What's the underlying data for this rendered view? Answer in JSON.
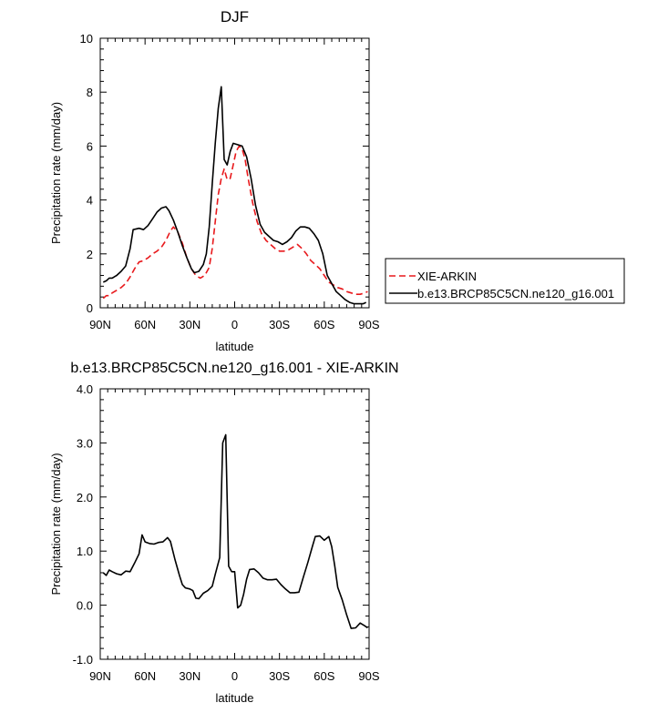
{
  "chart_data": [
    {
      "type": "line",
      "title": "DJF",
      "xlabel": "latitude",
      "ylabel": "Precipitation rate (mm/day)",
      "xlim": [
        90,
        -90
      ],
      "ylim": [
        0,
        10
      ],
      "xticks": [
        90,
        60,
        30,
        0,
        -30,
        -60,
        -90
      ],
      "xtick_labels": [
        "90N",
        "60N",
        "30N",
        "0",
        "30S",
        "60S",
        "90S"
      ],
      "yticks": [
        0,
        2,
        4,
        6,
        8,
        10
      ],
      "ytick_labels": [
        "0",
        "2",
        "4",
        "6",
        "8",
        "10"
      ],
      "legend": [
        "XIE-ARKIN",
        "b.e13.BRCP85C5CN.ne120_g16.001"
      ],
      "series": [
        {
          "name": "XIE-ARKIN",
          "color": "#e8191c",
          "dash": true,
          "points": [
            [
              88,
              0.35
            ],
            [
              86,
              0.45
            ],
            [
              84,
              0.45
            ],
            [
              82,
              0.55
            ],
            [
              79,
              0.65
            ],
            [
              76,
              0.75
            ],
            [
              73,
              0.9
            ],
            [
              70,
              1.15
            ],
            [
              67,
              1.45
            ],
            [
              64,
              1.7
            ],
            [
              61,
              1.75
            ],
            [
              58,
              1.85
            ],
            [
              55,
              2.0
            ],
            [
              52,
              2.1
            ],
            [
              49,
              2.25
            ],
            [
              46,
              2.5
            ],
            [
              43,
              2.85
            ],
            [
              41,
              3.0
            ],
            [
              38,
              2.8
            ],
            [
              35,
              2.4
            ],
            [
              32,
              1.85
            ],
            [
              29,
              1.45
            ],
            [
              26,
              1.2
            ],
            [
              23,
              1.1
            ],
            [
              20,
              1.2
            ],
            [
              17,
              1.5
            ],
            [
              15,
              2.2
            ],
            [
              13,
              3.2
            ],
            [
              11,
              4.2
            ],
            [
              9,
              4.8
            ],
            [
              7,
              5.15
            ],
            [
              5,
              4.75
            ],
            [
              3,
              4.8
            ],
            [
              1,
              5.3
            ],
            [
              -1,
              5.8
            ],
            [
              -3,
              6.0
            ],
            [
              -5,
              5.9
            ],
            [
              -7,
              5.5
            ],
            [
              -9,
              4.8
            ],
            [
              -12,
              3.9
            ],
            [
              -15,
              3.2
            ],
            [
              -18,
              2.75
            ],
            [
              -21,
              2.5
            ],
            [
              -24,
              2.35
            ],
            [
              -27,
              2.2
            ],
            [
              -30,
              2.1
            ],
            [
              -33,
              2.1
            ],
            [
              -36,
              2.15
            ],
            [
              -39,
              2.25
            ],
            [
              -42,
              2.35
            ],
            [
              -45,
              2.2
            ],
            [
              -48,
              2.0
            ],
            [
              -51,
              1.75
            ],
            [
              -54,
              1.6
            ],
            [
              -57,
              1.45
            ],
            [
              -60,
              1.2
            ],
            [
              -63,
              0.95
            ],
            [
              -66,
              0.85
            ],
            [
              -69,
              0.75
            ],
            [
              -72,
              0.7
            ],
            [
              -75,
              0.6
            ],
            [
              -78,
              0.55
            ],
            [
              -81,
              0.5
            ],
            [
              -84,
              0.5
            ],
            [
              -87,
              0.55
            ],
            [
              -89,
              0.6
            ]
          ]
        },
        {
          "name": "b.e13.BRCP85C5CN.ne120_g16.001",
          "color": "#000000",
          "dash": false,
          "points": [
            [
              88,
              0.95
            ],
            [
              86,
              1.0
            ],
            [
              84,
              1.1
            ],
            [
              82,
              1.1
            ],
            [
              79,
              1.2
            ],
            [
              76,
              1.35
            ],
            [
              73,
              1.55
            ],
            [
              70,
              2.2
            ],
            [
              68,
              2.9
            ],
            [
              64,
              2.95
            ],
            [
              61,
              2.9
            ],
            [
              58,
              3.05
            ],
            [
              55,
              3.3
            ],
            [
              52,
              3.55
            ],
            [
              49,
              3.7
            ],
            [
              46,
              3.75
            ],
            [
              44,
              3.6
            ],
            [
              41,
              3.25
            ],
            [
              38,
              2.8
            ],
            [
              35,
              2.3
            ],
            [
              32,
              1.85
            ],
            [
              29,
              1.45
            ],
            [
              27,
              1.3
            ],
            [
              24,
              1.35
            ],
            [
              21,
              1.6
            ],
            [
              19,
              2.0
            ],
            [
              17,
              3.0
            ],
            [
              15,
              4.6
            ],
            [
              13,
              6.1
            ],
            [
              11,
              7.4
            ],
            [
              9,
              8.2
            ],
            [
              7,
              5.5
            ],
            [
              5,
              5.3
            ],
            [
              3,
              5.8
            ],
            [
              1,
              6.1
            ],
            [
              -2,
              6.05
            ],
            [
              -5,
              6.0
            ],
            [
              -8,
              5.6
            ],
            [
              -11,
              4.8
            ],
            [
              -14,
              3.8
            ],
            [
              -17,
              3.1
            ],
            [
              -20,
              2.8
            ],
            [
              -23,
              2.65
            ],
            [
              -26,
              2.5
            ],
            [
              -29,
              2.45
            ],
            [
              -32,
              2.35
            ],
            [
              -35,
              2.45
            ],
            [
              -38,
              2.6
            ],
            [
              -41,
              2.85
            ],
            [
              -44,
              3.0
            ],
            [
              -47,
              3.0
            ],
            [
              -50,
              2.95
            ],
            [
              -53,
              2.75
            ],
            [
              -56,
              2.5
            ],
            [
              -59,
              2.0
            ],
            [
              -62,
              1.2
            ],
            [
              -65,
              0.9
            ],
            [
              -68,
              0.6
            ],
            [
              -71,
              0.45
            ],
            [
              -74,
              0.3
            ],
            [
              -77,
              0.2
            ],
            [
              -80,
              0.15
            ],
            [
              -83,
              0.15
            ],
            [
              -86,
              0.15
            ],
            [
              -88,
              0.2
            ]
          ]
        }
      ]
    },
    {
      "type": "line",
      "title": "b.e13.BRCP85C5CN.ne120_g16.001 - XIE-ARKIN",
      "xlabel": "latitude",
      "ylabel": "Precipitation rate (mm/day)",
      "xlim": [
        90,
        -90
      ],
      "ylim": [
        -1,
        4
      ],
      "xticks": [
        90,
        60,
        30,
        0,
        -30,
        -60,
        -90
      ],
      "xtick_labels": [
        "90N",
        "60N",
        "30N",
        "0",
        "30S",
        "60S",
        "90S"
      ],
      "yticks": [
        -1,
        0,
        1,
        2,
        3,
        4
      ],
      "ytick_labels": [
        "-1.0",
        "0.0",
        "1.0",
        "2.0",
        "3.0",
        "4.0"
      ],
      "series": [
        {
          "name": "b.e13.BRCP85C5CN.ne120_g16.001 - XIE-ARKIN",
          "color": "#000000",
          "dash": false,
          "points": [
            [
              88,
              0.6
            ],
            [
              86,
              0.55
            ],
            [
              84,
              0.65
            ],
            [
              82,
              0.62
            ],
            [
              79,
              0.58
            ],
            [
              76,
              0.56
            ],
            [
              73,
              0.63
            ],
            [
              70,
              0.62
            ],
            [
              67,
              0.78
            ],
            [
              64,
              0.95
            ],
            [
              62,
              1.3
            ],
            [
              60,
              1.17
            ],
            [
              57,
              1.14
            ],
            [
              54,
              1.13
            ],
            [
              51,
              1.16
            ],
            [
              48,
              1.17
            ],
            [
              45,
              1.25
            ],
            [
              43,
              1.18
            ],
            [
              40,
              0.85
            ],
            [
              37,
              0.55
            ],
            [
              35,
              0.38
            ],
            [
              33,
              0.32
            ],
            [
              30,
              0.3
            ],
            [
              28,
              0.27
            ],
            [
              26,
              0.13
            ],
            [
              24,
              0.12
            ],
            [
              21,
              0.22
            ],
            [
              18,
              0.27
            ],
            [
              15,
              0.35
            ],
            [
              13,
              0.57
            ],
            [
              10,
              0.88
            ],
            [
              8,
              3.0
            ],
            [
              6,
              3.15
            ],
            [
              4,
              0.72
            ],
            [
              2,
              0.62
            ],
            [
              0,
              0.62
            ],
            [
              -2,
              -0.05
            ],
            [
              -4,
              0.0
            ],
            [
              -6,
              0.2
            ],
            [
              -8,
              0.48
            ],
            [
              -10,
              0.66
            ],
            [
              -13,
              0.67
            ],
            [
              -16,
              0.6
            ],
            [
              -19,
              0.5
            ],
            [
              -22,
              0.47
            ],
            [
              -25,
              0.47
            ],
            [
              -28,
              0.48
            ],
            [
              -31,
              0.38
            ],
            [
              -34,
              0.3
            ],
            [
              -37,
              0.23
            ],
            [
              -40,
              0.23
            ],
            [
              -43,
              0.24
            ],
            [
              -46,
              0.52
            ],
            [
              -49,
              0.79
            ],
            [
              -52,
              1.08
            ],
            [
              -54,
              1.27
            ],
            [
              -57,
              1.28
            ],
            [
              -60,
              1.2
            ],
            [
              -63,
              1.27
            ],
            [
              -65,
              1.08
            ],
            [
              -67,
              0.73
            ],
            [
              -69,
              0.33
            ],
            [
              -72,
              0.1
            ],
            [
              -75,
              -0.18
            ],
            [
              -78,
              -0.43
            ],
            [
              -81,
              -0.42
            ],
            [
              -84,
              -0.33
            ],
            [
              -87,
              -0.38
            ],
            [
              -89,
              -0.42
            ]
          ]
        }
      ]
    }
  ]
}
